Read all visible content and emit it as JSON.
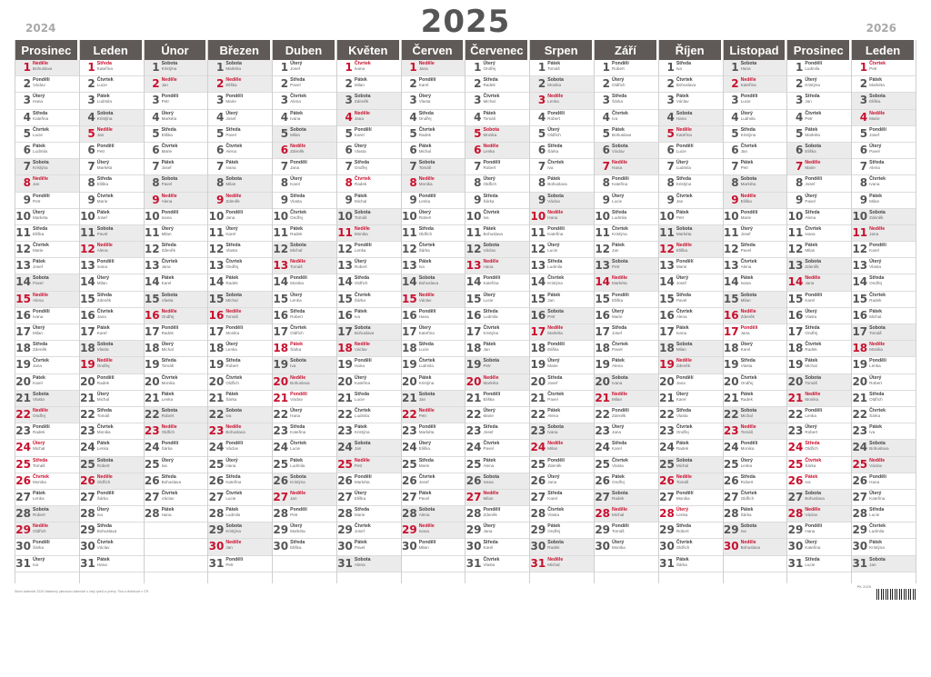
{
  "year_main": "2025",
  "year_prev": "2024",
  "year_next": "2026",
  "colors": {
    "header_bg": "#5f5a57",
    "holiday_red": "#c8102e",
    "weekend_bg": "#ebebeb"
  },
  "months": [
    {
      "name": "Prosinec",
      "start_dow": 6,
      "days": 31,
      "holidays": [
        24,
        25,
        26
      ]
    },
    {
      "name": "Leden",
      "start_dow": 2,
      "days": 31,
      "holidays": [
        1
      ]
    },
    {
      "name": "Únor",
      "start_dow": 5,
      "days": 28,
      "holidays": []
    },
    {
      "name": "Březen",
      "start_dow": 5,
      "days": 31,
      "holidays": []
    },
    {
      "name": "Duben",
      "start_dow": 1,
      "days": 30,
      "holidays": [
        18,
        21
      ]
    },
    {
      "name": "Květen",
      "start_dow": 3,
      "days": 31,
      "holidays": [
        1,
        8
      ]
    },
    {
      "name": "Červen",
      "start_dow": 6,
      "days": 30,
      "holidays": []
    },
    {
      "name": "Červenec",
      "start_dow": 1,
      "days": 31,
      "holidays": [
        5,
        6
      ]
    },
    {
      "name": "Srpen",
      "start_dow": 4,
      "days": 31,
      "holidays": []
    },
    {
      "name": "Září",
      "start_dow": 0,
      "days": 30,
      "holidays": [
        28
      ]
    },
    {
      "name": "Říjen",
      "start_dow": 2,
      "days": 31,
      "holidays": [
        28
      ]
    },
    {
      "name": "Listopad",
      "start_dow": 5,
      "days": 30,
      "holidays": [
        17
      ]
    },
    {
      "name": "Prosinec",
      "start_dow": 0,
      "days": 31,
      "holidays": [
        24,
        25,
        26
      ]
    },
    {
      "name": "Leden",
      "start_dow": 3,
      "days": 31,
      "holidays": [
        1
      ]
    }
  ],
  "weekdays": [
    "Pondělí",
    "Úterý",
    "Středa",
    "Čtvrtek",
    "Pátek",
    "Sobota",
    "Neděle"
  ],
  "sample_names": [
    "Iva",
    "Bohuslava",
    "Václav",
    "Hana",
    "Kateřina",
    "Lucie",
    "Ludmila",
    "Kristýna",
    "Jan",
    "Petr",
    "Markéta",
    "Eliška",
    "Marie",
    "Josef",
    "Pavel",
    "Alena",
    "Ivana",
    "Milan",
    "Zdeněk",
    "Jana",
    "Karel",
    "Vlasta",
    "Ondřej",
    "Radek",
    "Michal",
    "Tomáš",
    "Monika",
    "Lenka",
    "Robert",
    "Oldřich",
    "Šárka"
  ],
  "footer": {
    "text": "Stolní kalendář 2025 Nástěnný plánovací kalendář s čísly týdnů a jmény. Tisk a distribuce v ČR.",
    "code": "PK 2025"
  }
}
